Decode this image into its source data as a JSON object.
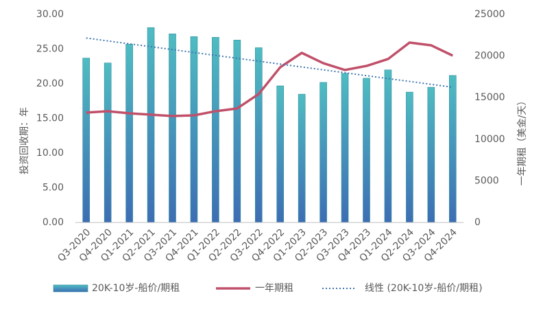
{
  "chart_data": {
    "type": "bar",
    "categories": [
      "Q3-2020",
      "Q4-2020",
      "Q1-2021",
      "Q2-2021",
      "Q3-2021",
      "Q4-2021",
      "Q1-2022",
      "Q2-2022",
      "Q3-2022",
      "Q4-2022",
      "Q1-2023",
      "Q2-2023",
      "Q3-2023",
      "Q4-2023",
      "Q1-2024",
      "Q2-2024",
      "Q3-2024",
      "Q4-2024"
    ],
    "series": [
      {
        "name": "20K-10岁-船价/期租",
        "type": "bar",
        "color": "#4bb5bf",
        "values": [
          23.7,
          23.0,
          25.7,
          28.1,
          27.2,
          26.8,
          26.7,
          26.3,
          25.2,
          19.7,
          18.5,
          20.2,
          21.5,
          20.8,
          22.0,
          18.8,
          19.5,
          21.2
        ]
      },
      {
        "name": "一年期租",
        "type": "line",
        "axis": "y2",
        "color": "#c0506a",
        "values": [
          13200,
          13370,
          13120,
          12950,
          12790,
          12870,
          13370,
          13700,
          15430,
          18650,
          20380,
          19140,
          18320,
          18810,
          19640,
          21620,
          21290,
          20050
        ]
      },
      {
        "name": "线性 (20K-10岁-船价/期租)",
        "type": "trend",
        "color": "#3e75b0",
        "values": [
          26.6,
          26.18,
          25.76,
          25.35,
          24.93,
          24.51,
          24.09,
          23.68,
          23.26,
          22.84,
          22.42,
          22.01,
          21.59,
          21.17,
          20.75,
          20.34,
          19.92,
          19.5
        ]
      }
    ],
    "ylabel": "投资回收期：年",
    "y2label": "一年期租（美金/天）",
    "ylim": [
      0,
      30
    ],
    "yticks": [
      {
        "value": 0,
        "label": "0.00"
      },
      {
        "value": 5,
        "label": "5.00"
      },
      {
        "value": 10,
        "label": "10.00"
      },
      {
        "value": 15,
        "label": "15.00"
      },
      {
        "value": 20,
        "label": "20.00"
      },
      {
        "value": 25,
        "label": "25.00"
      },
      {
        "value": 30,
        "label": "30.00"
      }
    ],
    "y2lim": [
      0,
      25000
    ],
    "y2ticks": [
      0,
      5000,
      10000,
      15000,
      20000,
      25000
    ],
    "grid": false
  }
}
